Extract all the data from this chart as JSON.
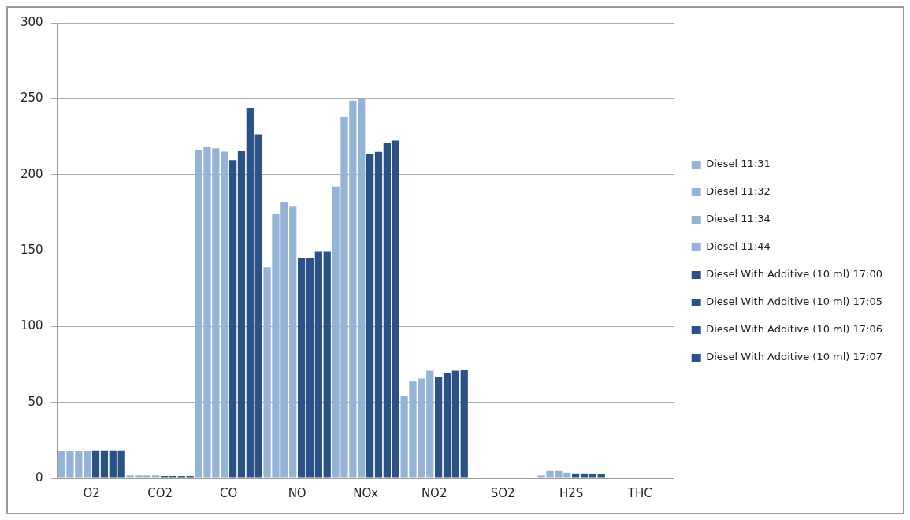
{
  "chart_data": {
    "type": "bar",
    "categories": [
      "O2",
      "CO2",
      "CO",
      "NO",
      "NOx",
      "NO2",
      "SO2",
      "H2S",
      "THC"
    ],
    "series": [
      {
        "name": "Diesel 11:31",
        "color": "#95b3d7",
        "values": [
          17.8,
          1.9,
          216.2,
          139,
          192.2,
          54,
          0,
          1.9,
          0
        ]
      },
      {
        "name": "Diesel 11:32",
        "color": "#95b3d7",
        "values": [
          17.8,
          1.9,
          218,
          174.2,
          238.3,
          63.7,
          0,
          4.8,
          0
        ]
      },
      {
        "name": "Diesel 11:34",
        "color": "#95b3d7",
        "values": [
          17.8,
          1.9,
          217.3,
          181.9,
          248.7,
          65.6,
          0,
          4.8,
          0
        ]
      },
      {
        "name": "Diesel 11:44",
        "color": "#95b3d7",
        "values": [
          17.8,
          1.9,
          215.2,
          179,
          249.9,
          70.8,
          0,
          3.7,
          0
        ]
      },
      {
        "name": "Diesel With Additive (10 ml) 17:00",
        "color": "#2a5287",
        "values": [
          18.3,
          1.5,
          209.6,
          145.3,
          213.3,
          67,
          0,
          3.2,
          0
        ]
      },
      {
        "name": "Diesel With Additive (10 ml) 17:05",
        "color": "#2a5287",
        "values": [
          18.3,
          1.5,
          215.4,
          145.3,
          215,
          69.1,
          0,
          3.2,
          0
        ]
      },
      {
        "name": "Diesel With Additive (10 ml) 17:06",
        "color": "#2a5287",
        "values": [
          18.3,
          1.5,
          244,
          149.2,
          220.7,
          70.9,
          0,
          2.9,
          0
        ]
      },
      {
        "name": "Diesel With Additive (10 ml) 17:07",
        "color": "#2a5287",
        "values": [
          18.3,
          1.5,
          226.5,
          149.2,
          222.4,
          71.6,
          0,
          2.9,
          0
        ]
      }
    ],
    "ylim": [
      0,
      300
    ],
    "yticks": [
      0,
      50,
      100,
      150,
      200,
      250,
      300
    ],
    "grid": "y",
    "legend": "right"
  }
}
